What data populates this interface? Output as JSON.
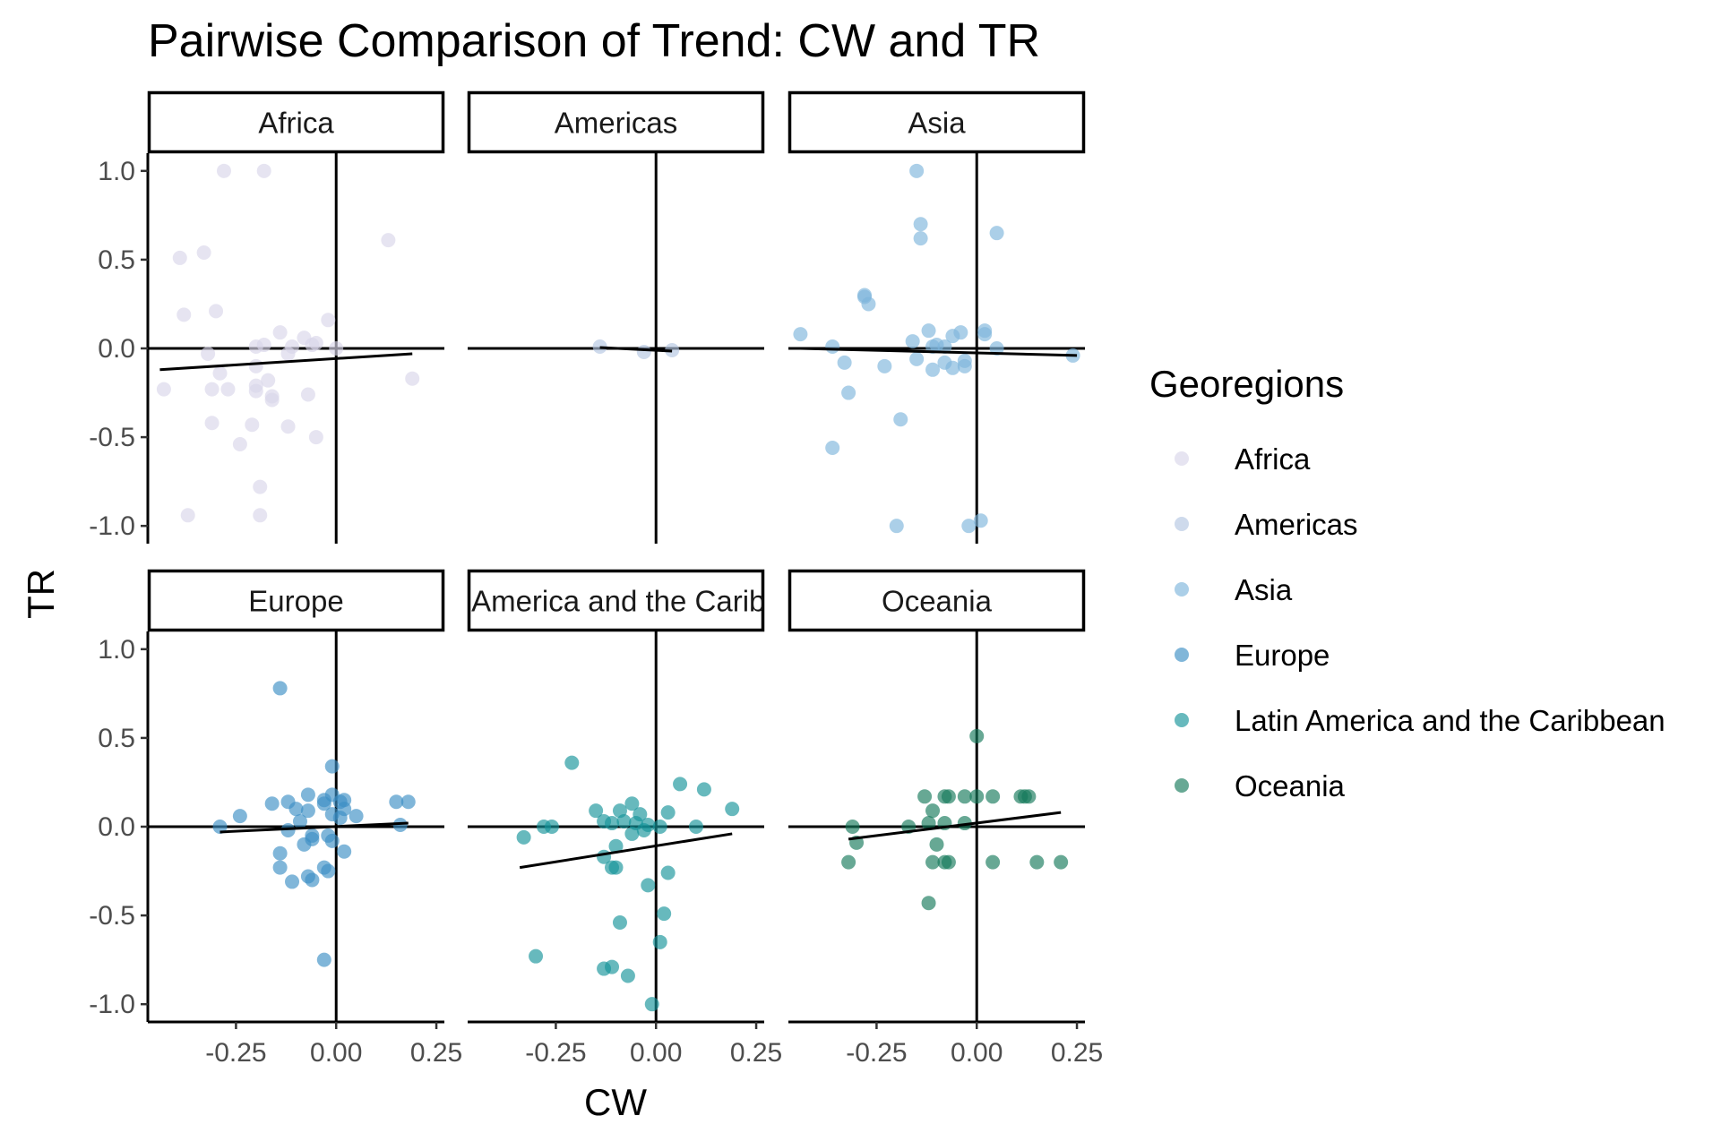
{
  "chart_data": {
    "type": "scatter",
    "title": "Pairwise Comparison of Trend: CW and TR",
    "xlabel": "CW",
    "ylabel": "TR",
    "xlim": [
      -0.47,
      0.27
    ],
    "ylim": [
      -1.1,
      1.1
    ],
    "x_ticks": [
      -0.25,
      0.0,
      0.25
    ],
    "x_tick_labels": [
      "-0.25",
      "0.00",
      "0.25"
    ],
    "y_ticks": [
      1.0,
      0.5,
      0.0,
      -0.5,
      -1.0
    ],
    "y_tick_labels": [
      "1.0",
      "0.5",
      "0.0",
      "-0.5",
      "-1.0"
    ],
    "legend": {
      "title": "Georegions",
      "placement": "right",
      "entries": [
        "Africa",
        "Americas",
        "Asia",
        "Europe",
        "Latin America and the Caribbean",
        "Oceania"
      ]
    },
    "colors": {
      "Africa": "#d8d6ea",
      "Americas": "#b3c6e2",
      "Asia": "#7eb5dc",
      "Europe": "#3c8fc4",
      "Latin America and the Caribbean": "#16949a",
      "Oceania": "#167a5a"
    },
    "panels": [
      {
        "name": "Africa",
        "strip_label": "Africa",
        "fit": {
          "x": [
            -0.44,
            0.19
          ],
          "y": [
            -0.12,
            -0.03
          ]
        },
        "points": [
          [
            -0.28,
            1.0
          ],
          [
            -0.18,
            1.0
          ],
          [
            0.13,
            0.61
          ],
          [
            -0.39,
            0.51
          ],
          [
            -0.33,
            0.54
          ],
          [
            -0.38,
            0.19
          ],
          [
            -0.3,
            0.21
          ],
          [
            -0.02,
            0.16
          ],
          [
            -0.14,
            0.09
          ],
          [
            -0.08,
            0.06
          ],
          [
            -0.05,
            0.03
          ],
          [
            -0.18,
            0.02
          ],
          [
            -0.2,
            0.01
          ],
          [
            -0.11,
            0.01
          ],
          [
            -0.32,
            -0.03
          ],
          [
            -0.12,
            -0.03
          ],
          [
            -0.06,
            0.02
          ],
          [
            -0.29,
            -0.14
          ],
          [
            -0.2,
            -0.1
          ],
          [
            -0.17,
            -0.18
          ],
          [
            -0.2,
            -0.21
          ],
          [
            -0.31,
            -0.23
          ],
          [
            -0.27,
            -0.23
          ],
          [
            -0.2,
            -0.24
          ],
          [
            -0.43,
            -0.23
          ],
          [
            -0.16,
            -0.27
          ],
          [
            -0.16,
            -0.29
          ],
          [
            -0.07,
            -0.26
          ],
          [
            0.19,
            -0.17
          ],
          [
            -0.31,
            -0.42
          ],
          [
            -0.21,
            -0.43
          ],
          [
            -0.12,
            -0.44
          ],
          [
            -0.05,
            -0.5
          ],
          [
            -0.24,
            -0.54
          ],
          [
            -0.19,
            -0.78
          ],
          [
            -0.37,
            -0.94
          ],
          [
            -0.19,
            -0.94
          ],
          [
            0.0,
            0.0
          ]
        ]
      },
      {
        "name": "Americas",
        "strip_label": "Americas",
        "fit": {
          "x": [
            -0.14,
            0.04
          ],
          "y": [
            0.005,
            -0.015
          ]
        },
        "points": [
          [
            -0.14,
            0.01
          ],
          [
            -0.03,
            -0.02
          ],
          [
            0.04,
            -0.01
          ]
        ]
      },
      {
        "name": "Asia",
        "strip_label": "Asia",
        "fit": {
          "x": [
            -0.44,
            0.25
          ],
          "y": [
            0.0,
            -0.04
          ]
        },
        "points": [
          [
            -0.15,
            1.0
          ],
          [
            -0.14,
            0.7
          ],
          [
            -0.14,
            0.62
          ],
          [
            0.05,
            0.65
          ],
          [
            -0.28,
            0.3
          ],
          [
            -0.28,
            0.29
          ],
          [
            -0.27,
            0.25
          ],
          [
            -0.44,
            0.08
          ],
          [
            -0.12,
            0.1
          ],
          [
            -0.04,
            0.09
          ],
          [
            -0.06,
            0.07
          ],
          [
            0.02,
            0.1
          ],
          [
            0.02,
            0.08
          ],
          [
            -0.16,
            0.04
          ],
          [
            -0.36,
            0.01
          ],
          [
            -0.11,
            0.01
          ],
          [
            -0.1,
            0.02
          ],
          [
            0.05,
            0.0
          ],
          [
            -0.08,
            0.01
          ],
          [
            -0.15,
            -0.06
          ],
          [
            -0.33,
            -0.08
          ],
          [
            -0.23,
            -0.1
          ],
          [
            -0.11,
            -0.12
          ],
          [
            -0.08,
            -0.08
          ],
          [
            -0.06,
            -0.11
          ],
          [
            -0.03,
            -0.1
          ],
          [
            -0.03,
            -0.07
          ],
          [
            0.24,
            -0.04
          ],
          [
            -0.32,
            -0.25
          ],
          [
            -0.19,
            -0.4
          ],
          [
            -0.36,
            -0.56
          ],
          [
            -0.2,
            -1.0
          ],
          [
            -0.02,
            -1.0
          ],
          [
            0.01,
            -0.97
          ]
        ]
      },
      {
        "name": "Europe",
        "strip_label": "Europe",
        "fit": {
          "x": [
            -0.29,
            0.18
          ],
          "y": [
            -0.03,
            0.02
          ]
        },
        "points": [
          [
            -0.14,
            0.78
          ],
          [
            -0.01,
            0.34
          ],
          [
            -0.07,
            0.18
          ],
          [
            -0.01,
            0.18
          ],
          [
            -0.16,
            0.13
          ],
          [
            -0.12,
            0.14
          ],
          [
            -0.1,
            0.1
          ],
          [
            -0.07,
            0.09
          ],
          [
            -0.03,
            0.15
          ],
          [
            -0.03,
            0.13
          ],
          [
            0.01,
            0.14
          ],
          [
            0.02,
            0.15
          ],
          [
            0.02,
            0.1
          ],
          [
            0.15,
            0.14
          ],
          [
            0.18,
            0.14
          ],
          [
            -0.24,
            0.06
          ],
          [
            -0.09,
            0.03
          ],
          [
            -0.01,
            0.07
          ],
          [
            0.01,
            0.05
          ],
          [
            0.05,
            0.06
          ],
          [
            -0.29,
            0.0
          ],
          [
            -0.12,
            -0.02
          ],
          [
            0.16,
            0.01
          ],
          [
            -0.06,
            -0.05
          ],
          [
            -0.06,
            -0.07
          ],
          [
            -0.02,
            -0.05
          ],
          [
            -0.01,
            -0.08
          ],
          [
            -0.08,
            -0.1
          ],
          [
            0.02,
            -0.14
          ],
          [
            -0.14,
            -0.15
          ],
          [
            -0.14,
            -0.23
          ],
          [
            -0.03,
            -0.23
          ],
          [
            -0.02,
            -0.25
          ],
          [
            -0.11,
            -0.31
          ],
          [
            -0.07,
            -0.28
          ],
          [
            -0.06,
            -0.3
          ],
          [
            -0.03,
            -0.75
          ]
        ]
      },
      {
        "name": "Latin America and the Caribbean",
        "strip_label": "Latin America and the Caribbean",
        "fit": {
          "x": [
            -0.34,
            0.19
          ],
          "y": [
            -0.23,
            -0.04
          ]
        },
        "points": [
          [
            -0.21,
            0.36
          ],
          [
            0.06,
            0.24
          ],
          [
            0.12,
            0.21
          ],
          [
            0.19,
            0.1
          ],
          [
            -0.15,
            0.09
          ],
          [
            -0.09,
            0.09
          ],
          [
            -0.06,
            0.13
          ],
          [
            0.03,
            0.08
          ],
          [
            -0.04,
            0.07
          ],
          [
            -0.13,
            0.03
          ],
          [
            -0.11,
            0.02
          ],
          [
            -0.08,
            0.03
          ],
          [
            -0.05,
            0.02
          ],
          [
            -0.02,
            0.01
          ],
          [
            0.01,
            0.0
          ],
          [
            -0.28,
            0.0
          ],
          [
            -0.26,
            0.0
          ],
          [
            -0.33,
            -0.06
          ],
          [
            -0.06,
            -0.04
          ],
          [
            -0.03,
            -0.02
          ],
          [
            0.1,
            0.0
          ],
          [
            -0.1,
            -0.11
          ],
          [
            -0.13,
            -0.17
          ],
          [
            -0.11,
            -0.23
          ],
          [
            -0.1,
            -0.23
          ],
          [
            0.03,
            -0.26
          ],
          [
            -0.02,
            -0.33
          ],
          [
            0.02,
            -0.49
          ],
          [
            -0.09,
            -0.54
          ],
          [
            0.01,
            -0.65
          ],
          [
            -0.3,
            -0.73
          ],
          [
            -0.13,
            -0.8
          ],
          [
            -0.11,
            -0.79
          ],
          [
            -0.07,
            -0.84
          ],
          [
            -0.01,
            -1.0
          ]
        ]
      },
      {
        "name": "Oceania",
        "strip_label": "Oceania",
        "fit": {
          "x": [
            -0.32,
            0.21
          ],
          "y": [
            -0.07,
            0.08
          ]
        },
        "points": [
          [
            0.0,
            0.51
          ],
          [
            -0.13,
            0.17
          ],
          [
            -0.08,
            0.17
          ],
          [
            -0.07,
            0.17
          ],
          [
            -0.03,
            0.17
          ],
          [
            0.0,
            0.17
          ],
          [
            0.04,
            0.17
          ],
          [
            0.11,
            0.17
          ],
          [
            0.12,
            0.17
          ],
          [
            0.13,
            0.17
          ],
          [
            -0.11,
            0.09
          ],
          [
            -0.31,
            0.0
          ],
          [
            -0.17,
            0.0
          ],
          [
            -0.12,
            0.02
          ],
          [
            -0.08,
            0.02
          ],
          [
            -0.03,
            0.02
          ],
          [
            -0.3,
            -0.09
          ],
          [
            -0.1,
            -0.1
          ],
          [
            -0.32,
            -0.2
          ],
          [
            -0.11,
            -0.2
          ],
          [
            -0.08,
            -0.2
          ],
          [
            -0.07,
            -0.2
          ],
          [
            0.04,
            -0.2
          ],
          [
            0.15,
            -0.2
          ],
          [
            0.21,
            -0.2
          ],
          [
            -0.12,
            -0.43
          ]
        ]
      }
    ]
  }
}
